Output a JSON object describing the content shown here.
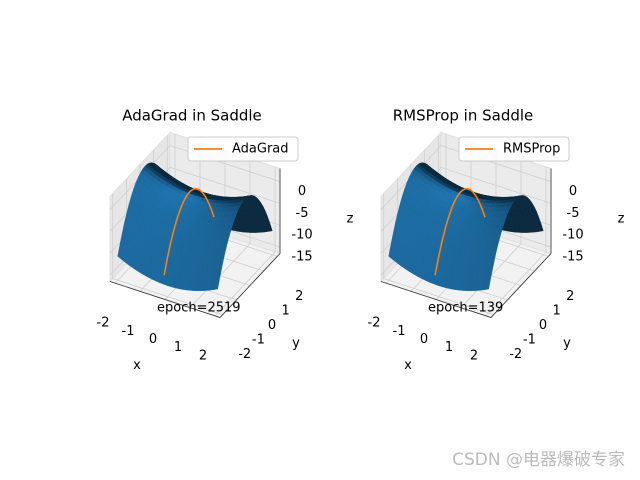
{
  "chart_data": [
    {
      "type": "surface3d",
      "title": "AdaGrad in Saddle",
      "surface_color": "#1f77b4",
      "series": [
        {
          "name": "AdaGrad",
          "color": "#ff7f0e"
        }
      ],
      "annotation": "epoch=2519",
      "xlabel": "x",
      "ylabel": "y",
      "zlabel": "z",
      "xlim": [
        -2.2,
        2.2
      ],
      "ylim": [
        -2.2,
        2.2
      ],
      "zlim": [
        -16.5,
        3
      ],
      "xticks": [
        -2,
        -1,
        0,
        1,
        2
      ],
      "yticks": [
        -2,
        -1,
        0,
        1,
        2
      ],
      "zticks": [
        0,
        -5,
        -10,
        -15
      ],
      "legend": "upper right",
      "grid": true
    },
    {
      "type": "surface3d",
      "title": "RMSProp in Saddle",
      "surface_color": "#1f77b4",
      "series": [
        {
          "name": "RMSProp",
          "color": "#ff7f0e"
        }
      ],
      "annotation": "epoch=139",
      "xlabel": "x",
      "ylabel": "y",
      "zlabel": "z",
      "xlim": [
        -2.2,
        2.2
      ],
      "ylim": [
        -2.2,
        2.2
      ],
      "zlim": [
        -16.5,
        3
      ],
      "xticks": [
        -2,
        -1,
        0,
        1,
        2
      ],
      "yticks": [
        -2,
        -1,
        0,
        1,
        2
      ],
      "zticks": [
        0,
        -5,
        -10,
        -15
      ],
      "legend": "upper right",
      "grid": true
    }
  ],
  "watermark": "CSDN @电器爆破专家"
}
